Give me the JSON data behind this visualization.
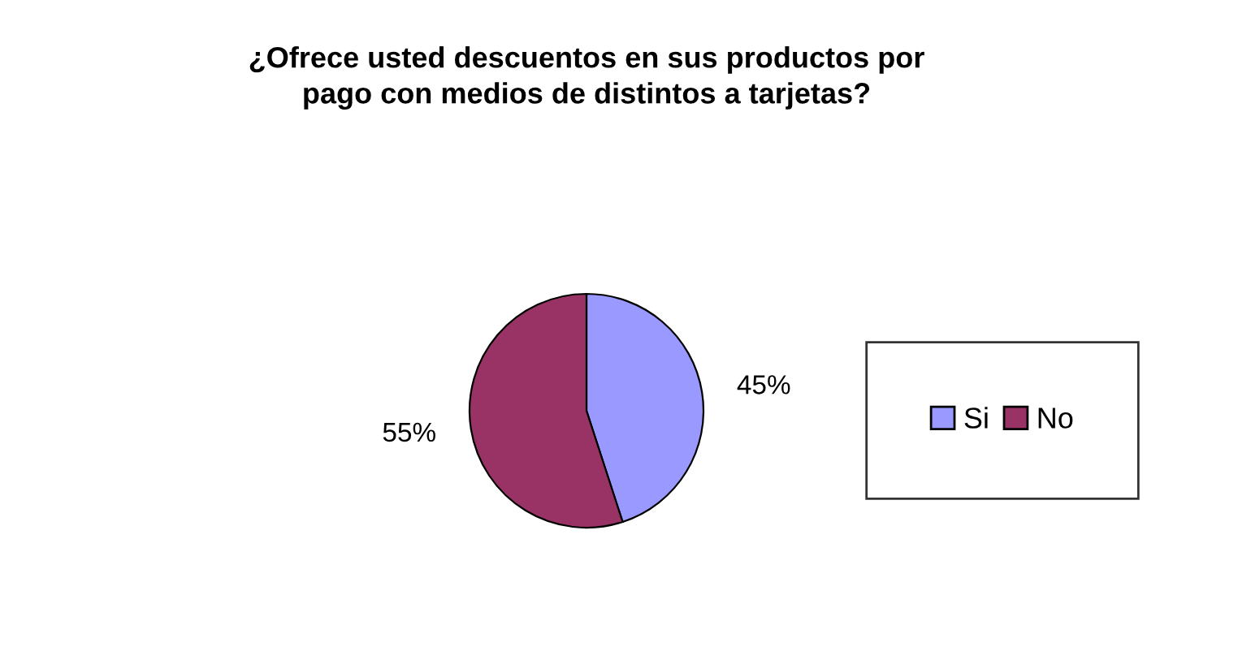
{
  "chart_data": {
    "type": "pie",
    "title": "¿Ofrece usted descuentos en sus productos por\npago con medios de distintos a tarjetas?",
    "categories": [
      "Si",
      "No"
    ],
    "values": [
      45,
      55
    ],
    "colors": [
      "#9999ff",
      "#993366"
    ],
    "value_labels": [
      "45%",
      "55%"
    ],
    "legend": "right"
  }
}
